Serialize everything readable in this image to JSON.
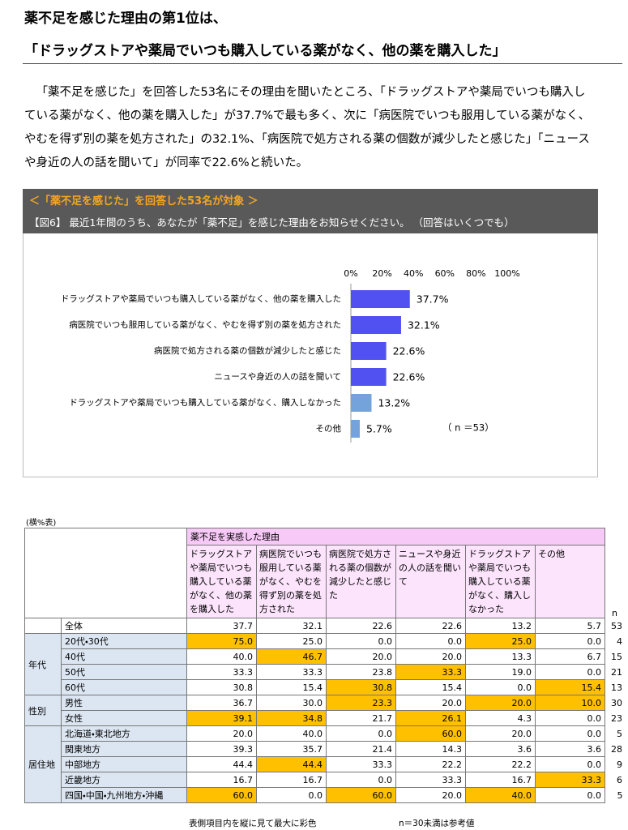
{
  "header": {
    "title_line1": "薬不足を感じた理由の第1位は、",
    "title_line2": "「ドラッグストアや薬局でいつも購入している薬がなく、他の薬を購入した」"
  },
  "paragraph": "「薬不足を感じた」を回答した53名にその理由を聞いたところ、「ドラッグストアや薬局でいつも購入している薬がなく、他の薬を購入した」が37.7%で最も多く、次に「病医院でいつも服用している薬がなく、やむを得ず別の薬を処方された」の32.1%、「病医院で処方される薬の個数が減少したと感じた」「ニュースや身近の人の話を聞いて」が同率で22.6%と続いた。",
  "figure": {
    "target": "＜「薬不足を感じた」を回答した53名が対象 ＞",
    "question": "【図6】 最近1年間のうち、あなたが「薬不足」を感じた理由をお知らせください。 （回答はいくつでも）"
  },
  "chart_data": {
    "type": "bar",
    "orientation": "horizontal",
    "categories": [
      "ドラッグストアや薬局でいつも購入している薬がなく、他の薬を購入した",
      "病医院でいつも服用している薬がなく、やむを得ず別の薬を処方された",
      "病医院で処方される薬の個数が減少したと感じた",
      "ニュースや身近の人の話を聞いて",
      "ドラッグストアや薬局でいつも購入している薬がなく、購入しなかった",
      "その他"
    ],
    "values": [
      37.7,
      32.1,
      22.6,
      22.6,
      13.2,
      5.7
    ],
    "value_labels": [
      "37.7%",
      "32.1%",
      "22.6%",
      "22.6%",
      "13.2%",
      "5.7%"
    ],
    "colors": [
      "#5151f2",
      "#5151f2",
      "#5151f2",
      "#5151f2",
      "#74a3dc",
      "#74a3dc"
    ],
    "xlim": [
      0,
      100
    ],
    "xticks": [
      {
        "value": 0,
        "label": "0%"
      },
      {
        "value": 20,
        "label": "20%"
      },
      {
        "value": 40,
        "label": "40%"
      },
      {
        "value": 60,
        "label": "60%"
      },
      {
        "value": 80,
        "label": "80%"
      },
      {
        "value": 100,
        "label": "100%"
      }
    ],
    "annotation": "（ n ＝53）"
  },
  "table": {
    "note": "(横%表)",
    "group_header": "薬不足を実感した理由",
    "columns": [
      "ドラッグストアや薬局でいつも購入している薬がなく、他の薬を購入した",
      "病医院でいつも服用している薬がなく、やむを得ず別の薬を処方された",
      "病医院で処方される薬の個数が減少したと感じた",
      "ニュースや身近の人の話を聞いて",
      "ドラッグストアや薬局でいつも購入している薬がなく、購入しなかった",
      "その他"
    ],
    "n_header": "n",
    "total": {
      "label": "全体",
      "cells": [
        "37.7",
        "32.1",
        "22.6",
        "22.6",
        "13.2",
        "5.7"
      ],
      "n": "53"
    },
    "groups": [
      {
        "name": "年代",
        "rows": [
          {
            "label": "20代・30代",
            "cells": [
              "75.0",
              "25.0",
              "0.0",
              "0.0",
              "25.0",
              "0.0"
            ],
            "n": "4"
          },
          {
            "label": "40代",
            "cells": [
              "40.0",
              "46.7",
              "20.0",
              "20.0",
              "13.3",
              "6.7"
            ],
            "n": "15"
          },
          {
            "label": "50代",
            "cells": [
              "33.3",
              "33.3",
              "23.8",
              "33.3",
              "19.0",
              "0.0"
            ],
            "n": "21"
          },
          {
            "label": "60代",
            "cells": [
              "30.8",
              "15.4",
              "30.8",
              "15.4",
              "0.0",
              "15.4"
            ],
            "n": "13"
          }
        ]
      },
      {
        "name": "性別",
        "rows": [
          {
            "label": "男性",
            "cells": [
              "36.7",
              "30.0",
              "23.3",
              "20.0",
              "20.0",
              "10.0"
            ],
            "n": "30"
          },
          {
            "label": "女性",
            "cells": [
              "39.1",
              "34.8",
              "21.7",
              "26.1",
              "4.3",
              "0.0"
            ],
            "n": "23"
          }
        ]
      },
      {
        "name": "居住地",
        "rows": [
          {
            "label": "北海道・東北地方",
            "cells": [
              "20.0",
              "40.0",
              "0.0",
              "60.0",
              "20.0",
              "0.0"
            ],
            "n": "5"
          },
          {
            "label": "関東地方",
            "cells": [
              "39.3",
              "35.7",
              "21.4",
              "14.3",
              "3.6",
              "3.6"
            ],
            "n": "28"
          },
          {
            "label": "中部地方",
            "cells": [
              "44.4",
              "44.4",
              "33.3",
              "22.2",
              "22.2",
              "0.0"
            ],
            "n": "9"
          },
          {
            "label": "近畿地方",
            "cells": [
              "16.7",
              "16.7",
              "0.0",
              "33.3",
              "16.7",
              "33.3"
            ],
            "n": "6"
          },
          {
            "label": "四国・中国・九州地方・沖縄",
            "cells": [
              "60.0",
              "0.0",
              "60.0",
              "20.0",
              "40.0",
              "0.0"
            ],
            "n": "5"
          }
        ]
      }
    ],
    "footnotes": [
      "表側項目内を縦に見て最大に彩色",
      "n＝30未満は参考値"
    ]
  }
}
